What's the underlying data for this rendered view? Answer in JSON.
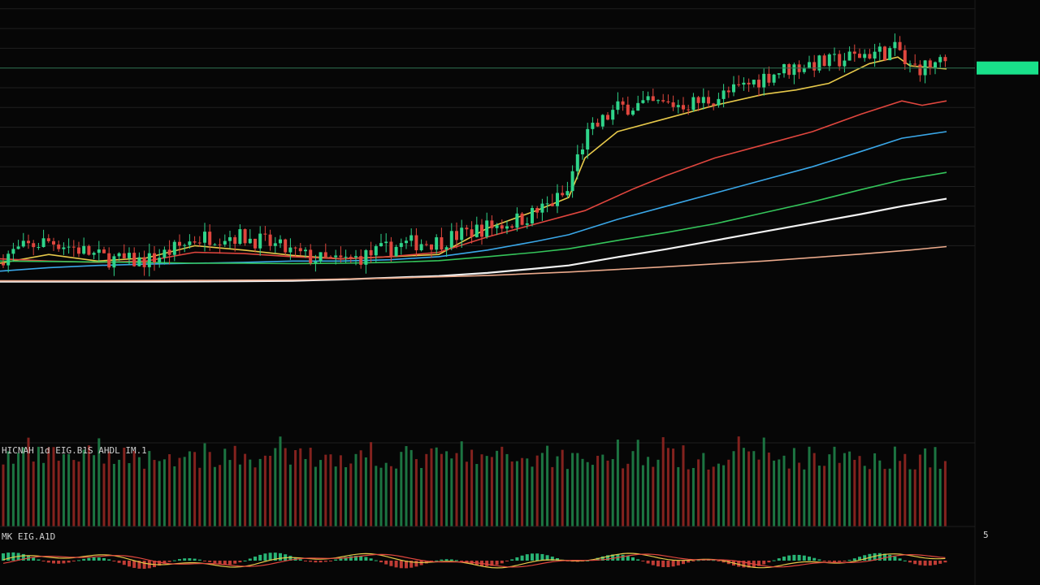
{
  "colors": {
    "background": "#060606",
    "up": "#2fd48a",
    "down": "#e0463e",
    "grid": "#1f1f1f",
    "price_tag_bg": "#19e08a",
    "axis_text": "#d8d8d8"
  },
  "volume_panel": {
    "label": "HICNAH 1d EIG.B1S AHDL IM.1"
  },
  "macd_panel": {
    "label": "MK EIG.A1D",
    "axis_label": "5"
  },
  "price_tag": {
    "label": ""
  },
  "chart_data": {
    "type": "candlestick",
    "title": "",
    "xlabel": "",
    "ylabel": "",
    "ylim": [
      0,
      1000
    ],
    "y_ticks": [
      980,
      935,
      890,
      845,
      800,
      755,
      710,
      665,
      620,
      575,
      530,
      485,
      440
    ],
    "y_tick_labels": [
      "",
      "",
      "",
      "",
      "",
      "",
      "",
      "",
      "",
      "",
      "",
      "",
      ""
    ],
    "last_price": 845,
    "grid": true,
    "moving_average_colors": [
      "#e6c84a",
      "#e0463e",
      "#3aa7e8",
      "#34c45a",
      "#f2f2f2",
      "#e9a88a"
    ],
    "moving_averages": [
      {
        "color": "#e6c84a",
        "points": [
          [
            0,
            400
          ],
          [
            60,
            420
          ],
          [
            120,
            405
          ],
          [
            180,
            412
          ],
          [
            240,
            440
          ],
          [
            300,
            430
          ],
          [
            360,
            418
          ],
          [
            420,
            410
          ],
          [
            480,
            415
          ],
          [
            540,
            420
          ],
          [
            600,
            480
          ],
          [
            660,
            520
          ],
          [
            700,
            550
          ],
          [
            720,
            640
          ],
          [
            760,
            700
          ],
          [
            820,
            730
          ],
          [
            880,
            760
          ],
          [
            940,
            785
          ],
          [
            980,
            795
          ],
          [
            1020,
            810
          ],
          [
            1070,
            855
          ],
          [
            1105,
            870
          ],
          [
            1120,
            850
          ],
          [
            1165,
            843
          ]
        ]
      },
      {
        "color": "#e0463e",
        "points": [
          [
            0,
            410
          ],
          [
            60,
            405
          ],
          [
            120,
            402
          ],
          [
            180,
            405
          ],
          [
            240,
            425
          ],
          [
            300,
            422
          ],
          [
            360,
            415
          ],
          [
            420,
            410
          ],
          [
            480,
            415
          ],
          [
            540,
            425
          ],
          [
            600,
            460
          ],
          [
            660,
            490
          ],
          [
            720,
            520
          ],
          [
            780,
            570
          ],
          [
            820,
            600
          ],
          [
            880,
            640
          ],
          [
            940,
            670
          ],
          [
            1000,
            700
          ],
          [
            1060,
            740
          ],
          [
            1110,
            770
          ],
          [
            1135,
            760
          ],
          [
            1165,
            770
          ]
        ]
      },
      {
        "color": "#3aa7e8",
        "points": [
          [
            0,
            382
          ],
          [
            60,
            390
          ],
          [
            120,
            395
          ],
          [
            180,
            398
          ],
          [
            240,
            400
          ],
          [
            300,
            402
          ],
          [
            360,
            405
          ],
          [
            420,
            405
          ],
          [
            480,
            408
          ],
          [
            540,
            415
          ],
          [
            600,
            430
          ],
          [
            660,
            450
          ],
          [
            700,
            465
          ],
          [
            760,
            500
          ],
          [
            820,
            530
          ],
          [
            880,
            560
          ],
          [
            940,
            590
          ],
          [
            1000,
            620
          ],
          [
            1060,
            655
          ],
          [
            1110,
            685
          ],
          [
            1165,
            700
          ]
        ]
      },
      {
        "color": "#34c45a",
        "points": [
          [
            0,
            405
          ],
          [
            60,
            404
          ],
          [
            120,
            403
          ],
          [
            180,
            402
          ],
          [
            240,
            400
          ],
          [
            300,
            400
          ],
          [
            360,
            399
          ],
          [
            420,
            400
          ],
          [
            480,
            402
          ],
          [
            540,
            406
          ],
          [
            600,
            415
          ],
          [
            660,
            425
          ],
          [
            700,
            433
          ],
          [
            760,
            452
          ],
          [
            820,
            470
          ],
          [
            880,
            490
          ],
          [
            940,
            515
          ],
          [
            1000,
            540
          ],
          [
            1060,
            568
          ],
          [
            1110,
            590
          ],
          [
            1165,
            607
          ]
        ]
      },
      {
        "color": "#f2f2f2",
        "points": [
          [
            0,
            358
          ],
          [
            100,
            358
          ],
          [
            200,
            358
          ],
          [
            300,
            359
          ],
          [
            360,
            360
          ],
          [
            420,
            363
          ],
          [
            480,
            367
          ],
          [
            540,
            371
          ],
          [
            600,
            378
          ],
          [
            660,
            388
          ],
          [
            700,
            395
          ],
          [
            760,
            414
          ],
          [
            820,
            432
          ],
          [
            880,
            452
          ],
          [
            940,
            472
          ],
          [
            1000,
            492
          ],
          [
            1060,
            512
          ],
          [
            1110,
            530
          ],
          [
            1165,
            547
          ]
        ]
      },
      {
        "color": "#e9a88a",
        "points": [
          [
            0,
            360
          ],
          [
            120,
            360
          ],
          [
            240,
            361
          ],
          [
            360,
            362
          ],
          [
            480,
            366
          ],
          [
            600,
            372
          ],
          [
            700,
            380
          ],
          [
            820,
            392
          ],
          [
            940,
            405
          ],
          [
            1060,
            421
          ],
          [
            1120,
            430
          ],
          [
            1165,
            438
          ]
        ]
      }
    ]
  }
}
